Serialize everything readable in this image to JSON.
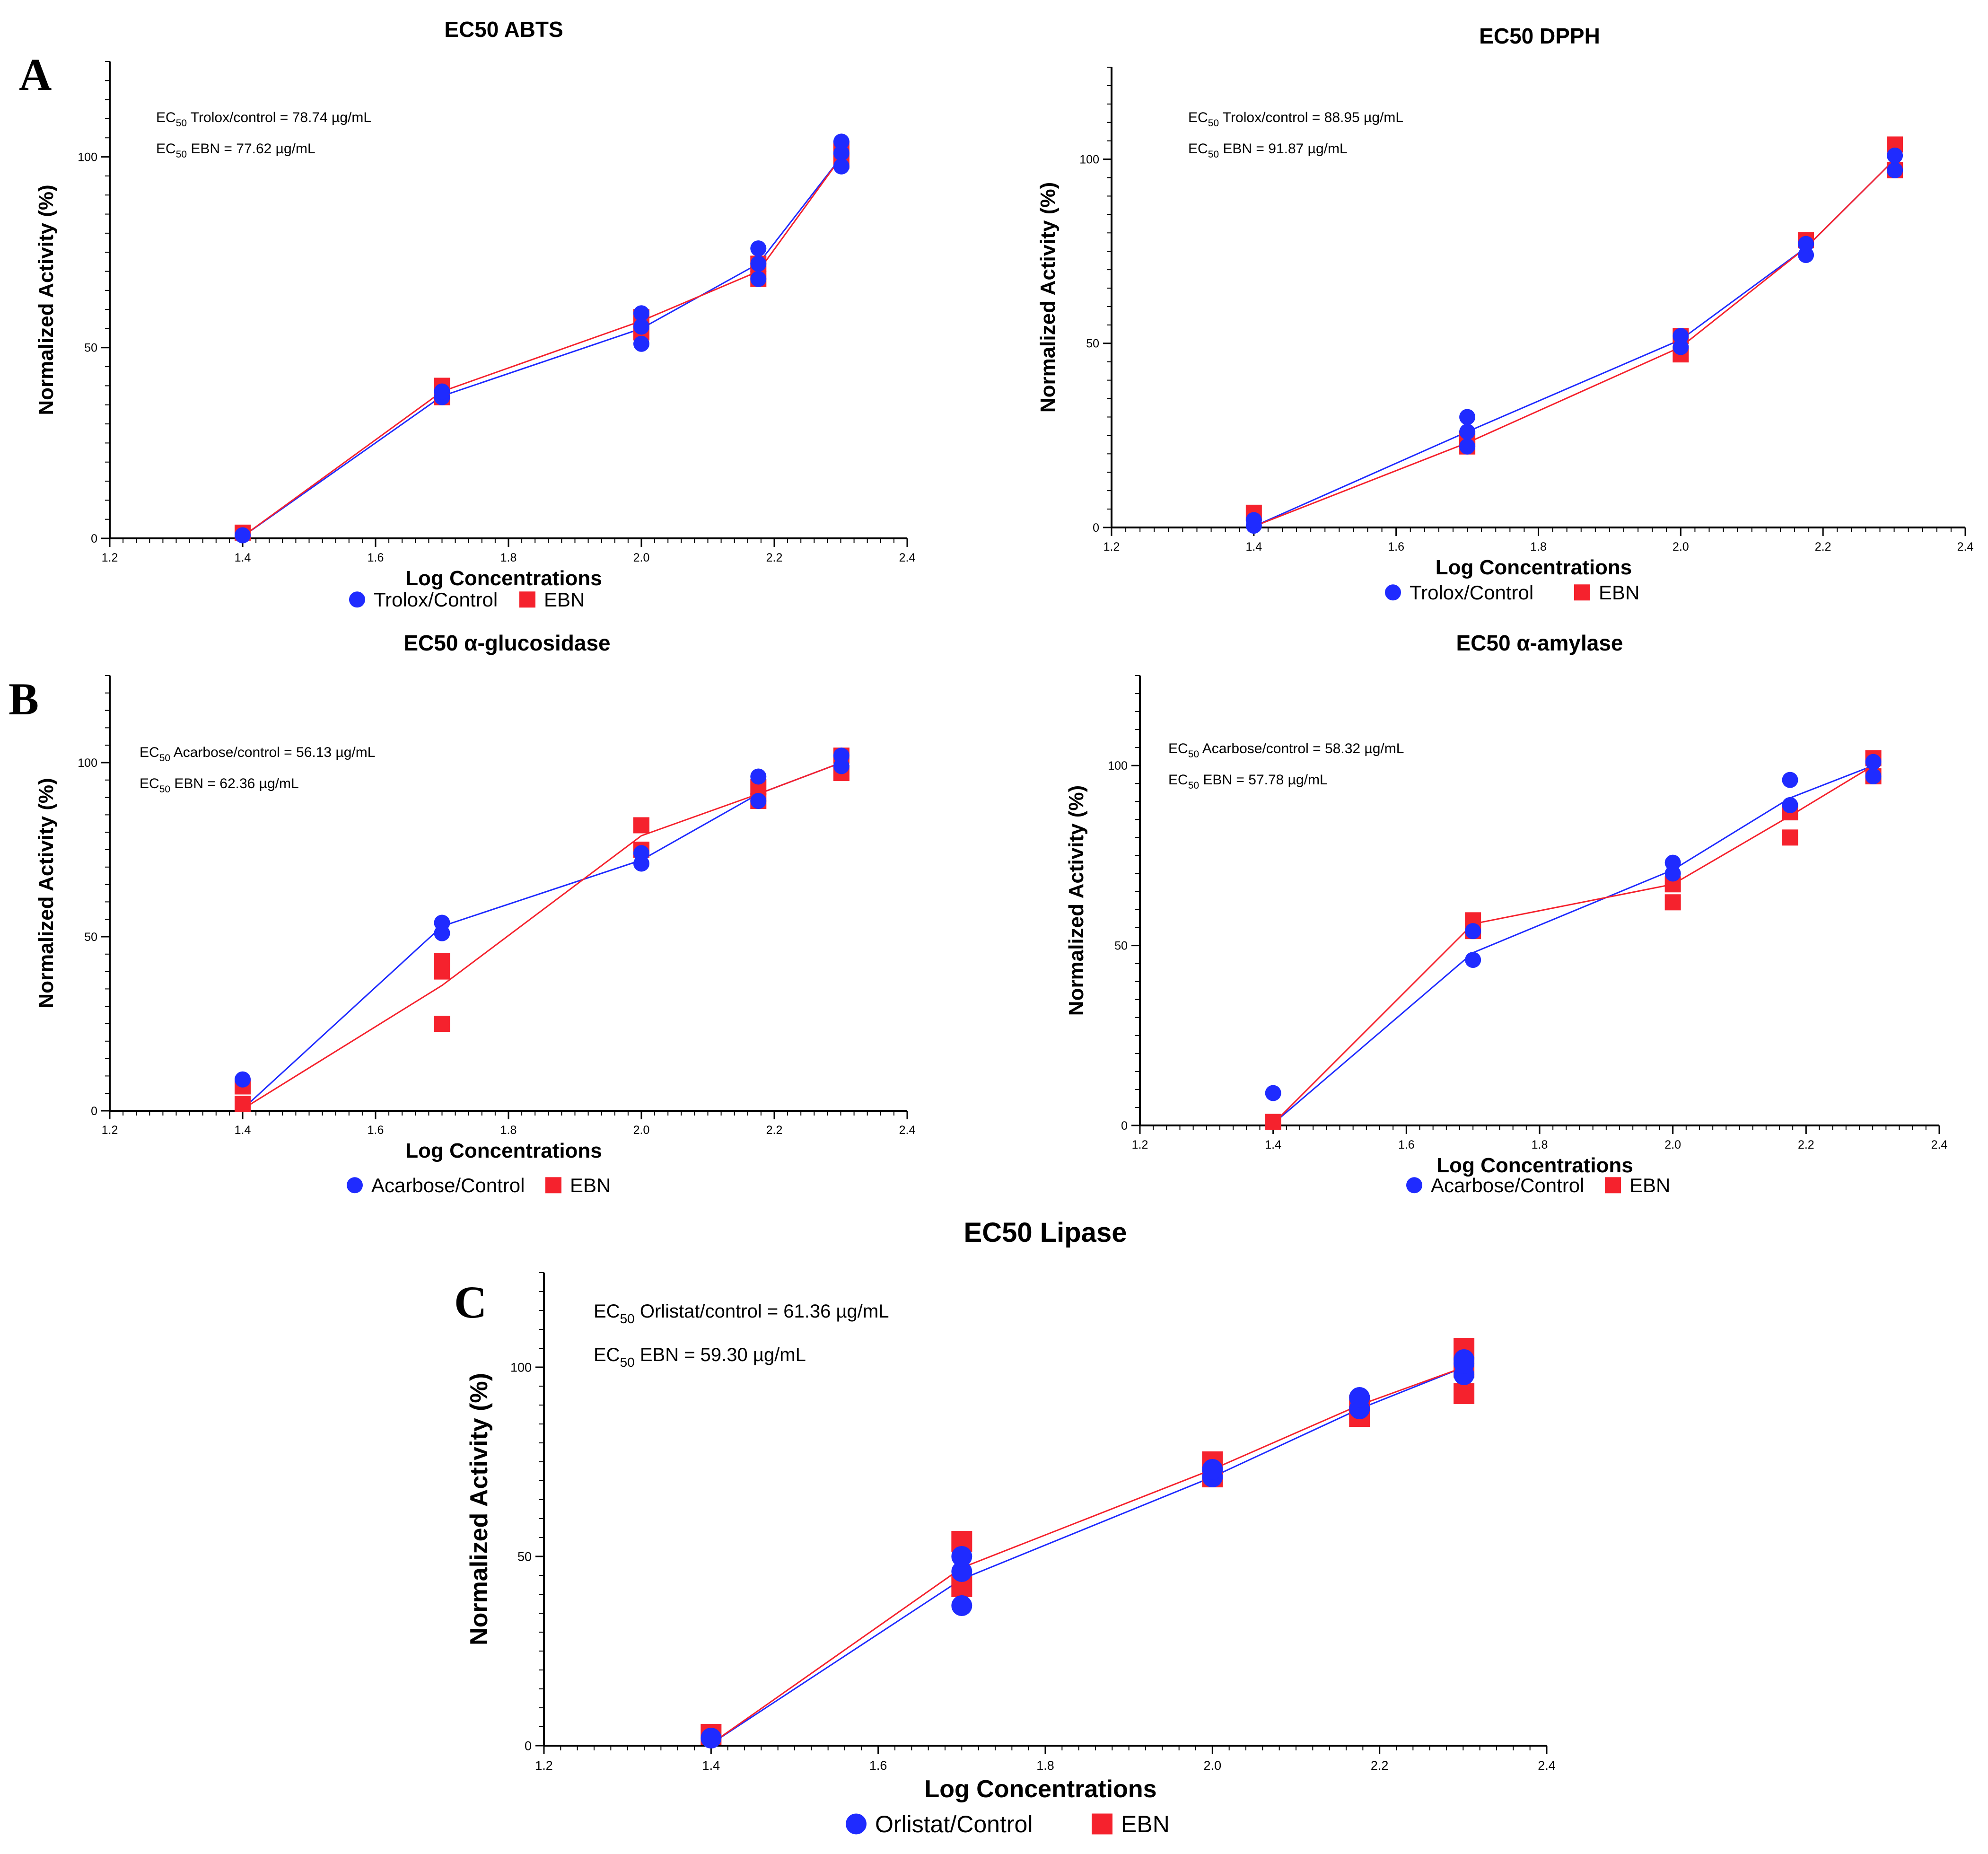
{
  "panel_labels": [
    "A",
    "B",
    "C"
  ],
  "colors": {
    "control": "#1f2bff",
    "ebn": "#f5222d",
    "axis": "#000000"
  },
  "chart_data": [
    {
      "type": "scatter",
      "title": "EC50 ABTS",
      "xlabel": "Log Concentrations",
      "ylabel": "Normalized Activity (%)",
      "xlim": [
        1.2,
        2.4
      ],
      "ylim": [
        0,
        125
      ],
      "xticks": [
        "1.2",
        "1.4",
        "1.6",
        "1.8",
        "2.0",
        "2.2",
        "2.4"
      ],
      "yticks": [
        "0",
        "50",
        "100"
      ],
      "annotations": [
        {
          "prefix": "EC",
          "sub": "50",
          "text": " Trolox/control = 78.74 µg/mL"
        },
        {
          "prefix": "EC",
          "sub": "50",
          "text": " EBN = 77.62 µg/mL"
        }
      ],
      "series": [
        {
          "name": "Trolox/Control",
          "marker": "circle",
          "points": [
            [
              1.4,
              0.8
            ],
            [
              1.7,
              37
            ],
            [
              1.7,
              38.5
            ],
            [
              2.0,
              51
            ],
            [
              2.0,
              55.5
            ],
            [
              2.0,
              59
            ],
            [
              2.176,
              68
            ],
            [
              2.176,
              72
            ],
            [
              2.176,
              76
            ],
            [
              2.301,
              97.5
            ],
            [
              2.301,
              101
            ],
            [
              2.301,
              104
            ]
          ],
          "line": [
            [
              1.4,
              0.5
            ],
            [
              1.7,
              37.3
            ],
            [
              2.0,
              55
            ],
            [
              2.176,
              72
            ],
            [
              2.301,
              100
            ]
          ]
        },
        {
          "name": "EBN",
          "marker": "square",
          "points": [
            [
              1.4,
              1.5
            ],
            [
              1.7,
              37
            ],
            [
              1.7,
              40
            ],
            [
              2.0,
              54
            ],
            [
              2.0,
              58
            ],
            [
              2.176,
              68
            ],
            [
              2.176,
              72
            ],
            [
              2.301,
              99
            ],
            [
              2.301,
              102
            ]
          ],
          "line": [
            [
              1.4,
              0.5
            ],
            [
              1.7,
              38.5
            ],
            [
              2.0,
              57
            ],
            [
              2.176,
              70
            ],
            [
              2.301,
              100
            ]
          ]
        }
      ]
    },
    {
      "type": "scatter",
      "title": "EC50 DPPH",
      "xlabel": "Log Concentrations",
      "ylabel": "Normalized Activity (%)",
      "xlim": [
        1.2,
        2.4
      ],
      "ylim": [
        0,
        125
      ],
      "xticks": [
        "1.2",
        "1.4",
        "1.6",
        "1.8",
        "2.0",
        "2.2",
        "2.4"
      ],
      "yticks": [
        "0",
        "50",
        "100"
      ],
      "annotations": [
        {
          "prefix": "EC",
          "sub": "50",
          "text": " Trolox/control = 88.95 µg/mL"
        },
        {
          "prefix": "EC",
          "sub": "50",
          "text": " EBN = 91.87 µg/mL"
        }
      ],
      "series": [
        {
          "name": "Trolox/Control",
          "marker": "circle",
          "points": [
            [
              1.4,
              0.5
            ],
            [
              1.4,
              2
            ],
            [
              1.7,
              22
            ],
            [
              1.7,
              26
            ],
            [
              1.7,
              30
            ],
            [
              2.0,
              49
            ],
            [
              2.0,
              52
            ],
            [
              2.176,
              74
            ],
            [
              2.176,
              77
            ],
            [
              2.301,
              97
            ],
            [
              2.301,
              101
            ]
          ],
          "line": [
            [
              1.4,
              0.3
            ],
            [
              1.7,
              26
            ],
            [
              2.0,
              51
            ],
            [
              2.176,
              76
            ],
            [
              2.301,
              100
            ]
          ]
        },
        {
          "name": "EBN",
          "marker": "square",
          "points": [
            [
              1.4,
              4
            ],
            [
              1.7,
              22
            ],
            [
              1.7,
              24
            ],
            [
              2.0,
              47
            ],
            [
              2.0,
              52
            ],
            [
              2.176,
              78
            ],
            [
              2.301,
              97
            ],
            [
              2.301,
              104
            ]
          ],
          "line": [
            [
              1.4,
              0.3
            ],
            [
              1.7,
              23
            ],
            [
              2.0,
              49
            ],
            [
              2.176,
              76
            ],
            [
              2.301,
              100
            ]
          ]
        }
      ]
    },
    {
      "type": "scatter",
      "title": "EC50 α-glucosidase",
      "xlabel": "Log Concentrations",
      "ylabel": "Normalized Activity (%)",
      "xlim": [
        1.2,
        2.4
      ],
      "ylim": [
        0,
        125
      ],
      "xticks": [
        "1.2",
        "1.4",
        "1.6",
        "1.8",
        "2.0",
        "2.2",
        "2.4"
      ],
      "yticks": [
        "0",
        "50",
        "100"
      ],
      "annotations": [
        {
          "prefix": "EC",
          "sub": "50",
          "text": " Acarbose/control = 56.13 µg/mL"
        },
        {
          "prefix": "EC",
          "sub": "50",
          "text": " EBN = 62.36 µg/mL"
        }
      ],
      "series": [
        {
          "name": "Acarbose/Control",
          "marker": "circle",
          "points": [
            [
              1.4,
              9
            ],
            [
              1.7,
              51
            ],
            [
              1.7,
              54
            ],
            [
              2.0,
              71
            ],
            [
              2.0,
              74
            ],
            [
              2.176,
              89
            ],
            [
              2.176,
              96
            ],
            [
              2.301,
              99
            ],
            [
              2.301,
              102
            ]
          ],
          "line": [
            [
              1.4,
              0.5
            ],
            [
              1.7,
              53
            ],
            [
              2.0,
              72
            ],
            [
              2.176,
              91
            ],
            [
              2.301,
              100
            ]
          ]
        },
        {
          "name": "EBN",
          "marker": "square",
          "points": [
            [
              1.4,
              2
            ],
            [
              1.4,
              7
            ],
            [
              1.7,
              25
            ],
            [
              1.7,
              40
            ],
            [
              1.7,
              43
            ],
            [
              2.0,
              75
            ],
            [
              2.0,
              82
            ],
            [
              2.176,
              89
            ],
            [
              2.176,
              93
            ],
            [
              2.301,
              97
            ],
            [
              2.301,
              102
            ]
          ],
          "line": [
            [
              1.4,
              0.5
            ],
            [
              1.7,
              36
            ],
            [
              2.0,
              79
            ],
            [
              2.176,
              91
            ],
            [
              2.301,
              100
            ]
          ]
        }
      ]
    },
    {
      "type": "scatter",
      "title": "EC50 α-amylase",
      "xlabel": "Log Concentrations",
      "ylabel": "Normalized Activity (%)",
      "xlim": [
        1.2,
        2.4
      ],
      "ylim": [
        0,
        125
      ],
      "xticks": [
        "1.2",
        "1.4",
        "1.6",
        "1.8",
        "2.0",
        "2.2",
        "2.4"
      ],
      "yticks": [
        "0",
        "50",
        "100"
      ],
      "annotations": [
        {
          "prefix": "EC",
          "sub": "50",
          "text": " Acarbose/control = 58.32 µg/mL"
        },
        {
          "prefix": "EC",
          "sub": "50",
          "text": " EBN = 57.78 µg/mL"
        }
      ],
      "series": [
        {
          "name": "Acarbose/Control",
          "marker": "circle",
          "points": [
            [
              1.4,
              9
            ],
            [
              1.7,
              46
            ],
            [
              1.7,
              54
            ],
            [
              2.0,
              70
            ],
            [
              2.0,
              73
            ],
            [
              2.176,
              89
            ],
            [
              2.176,
              96
            ],
            [
              2.301,
              97
            ],
            [
              2.301,
              101
            ]
          ],
          "line": [
            [
              1.4,
              0.5
            ],
            [
              1.7,
              48
            ],
            [
              2.0,
              71
            ],
            [
              2.176,
              91
            ],
            [
              2.301,
              100
            ]
          ]
        },
        {
          "name": "EBN",
          "marker": "square",
          "points": [
            [
              1.4,
              1
            ],
            [
              1.7,
              54
            ],
            [
              1.7,
              57
            ],
            [
              2.0,
              62
            ],
            [
              2.0,
              67
            ],
            [
              2.176,
              80
            ],
            [
              2.176,
              87
            ],
            [
              2.301,
              97
            ],
            [
              2.301,
              102
            ]
          ],
          "line": [
            [
              1.4,
              0.5
            ],
            [
              1.7,
              56
            ],
            [
              2.0,
              67
            ],
            [
              2.176,
              86
            ],
            [
              2.301,
              100
            ]
          ]
        }
      ]
    },
    {
      "type": "scatter",
      "title": "EC50 Lipase",
      "xlabel": "Log Concentrations",
      "ylabel": "Normalized Activity (%)",
      "xlim": [
        1.2,
        2.4
      ],
      "ylim": [
        0,
        125
      ],
      "xticks": [
        "1.2",
        "1.4",
        "1.6",
        "1.8",
        "2.0",
        "2.2",
        "2.4"
      ],
      "yticks": [
        "0",
        "50",
        "100"
      ],
      "annotations": [
        {
          "prefix": "EC",
          "sub": "50",
          "text": " Orlistat/control = 61.36 µg/mL"
        },
        {
          "prefix": "EC",
          "sub": "50",
          "text": " EBN = 59.30 µg/mL"
        }
      ],
      "series": [
        {
          "name": "Orlistat/Control",
          "marker": "circle",
          "points": [
            [
              1.4,
              2
            ],
            [
              1.7,
              37
            ],
            [
              1.7,
              46
            ],
            [
              1.7,
              50
            ],
            [
              2.0,
              71
            ],
            [
              2.0,
              73
            ],
            [
              2.176,
              89
            ],
            [
              2.176,
              92
            ],
            [
              2.301,
              98
            ],
            [
              2.301,
              101
            ],
            [
              2.301,
              102
            ]
          ],
          "line": [
            [
              1.4,
              0.5
            ],
            [
              1.7,
              44
            ],
            [
              2.0,
              71
            ],
            [
              2.176,
              89
            ],
            [
              2.301,
              100
            ]
          ]
        },
        {
          "name": "EBN",
          "marker": "square",
          "points": [
            [
              1.4,
              3
            ],
            [
              1.7,
              42
            ],
            [
              1.7,
              54
            ],
            [
              2.0,
              71
            ],
            [
              2.0,
              75
            ],
            [
              2.176,
              87
            ],
            [
              2.176,
              90
            ],
            [
              2.301,
              93
            ],
            [
              2.301,
              100
            ],
            [
              2.301,
              105
            ]
          ],
          "line": [
            [
              1.4,
              0.5
            ],
            [
              1.7,
              47
            ],
            [
              2.0,
              73
            ],
            [
              2.176,
              90
            ],
            [
              2.301,
              100
            ]
          ]
        }
      ]
    }
  ]
}
